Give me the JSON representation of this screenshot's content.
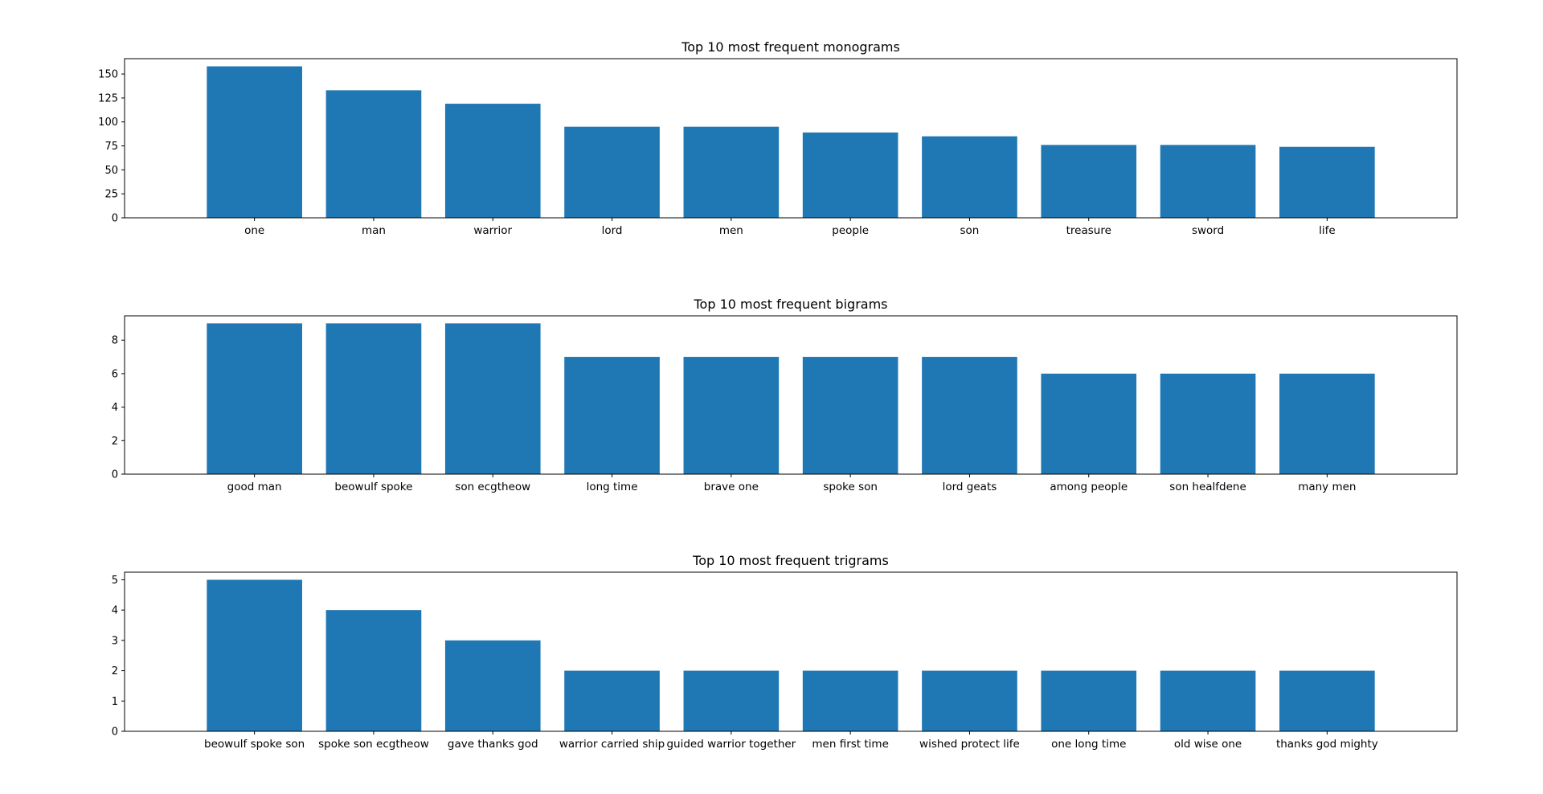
{
  "colors": {
    "bar": "#1f77b4",
    "axes": "#000000",
    "background": "#ffffff"
  },
  "chart_data": [
    {
      "type": "bar",
      "title": "Top 10 most frequent monograms",
      "xlabel": "",
      "ylabel": "",
      "categories": [
        "one",
        "man",
        "warrior",
        "lord",
        "men",
        "people",
        "son",
        "treasure",
        "sword",
        "life"
      ],
      "values": [
        158,
        133,
        119,
        95,
        95,
        89,
        85,
        76,
        76,
        74
      ],
      "ylim": [
        0,
        166
      ],
      "yticks": [
        0,
        25,
        50,
        75,
        100,
        125,
        150
      ],
      "grid": false
    },
    {
      "type": "bar",
      "title": "Top 10 most frequent bigrams",
      "xlabel": "",
      "ylabel": "",
      "categories": [
        "good man",
        "beowulf spoke",
        "son ecgtheow",
        "long time",
        "brave one",
        "spoke son",
        "lord geats",
        "among people",
        "son healfdene",
        "many men"
      ],
      "values": [
        9,
        9,
        9,
        7,
        7,
        7,
        7,
        6,
        6,
        6
      ],
      "ylim": [
        0,
        9.45
      ],
      "yticks": [
        0,
        2,
        4,
        6,
        8
      ],
      "grid": false
    },
    {
      "type": "bar",
      "title": "Top 10 most frequent trigrams",
      "xlabel": "",
      "ylabel": "",
      "categories": [
        "beowulf spoke son",
        "spoke son ecgtheow",
        "gave thanks god",
        "warrior carried ship",
        "guided warrior together",
        "men first time",
        "wished protect life",
        "one long time",
        "old wise one",
        "thanks god mighty"
      ],
      "values": [
        5,
        4,
        3,
        2,
        2,
        2,
        2,
        2,
        2,
        2
      ],
      "ylim": [
        0,
        5.25
      ],
      "yticks": [
        0,
        1,
        2,
        3,
        4,
        5
      ],
      "grid": false
    }
  ]
}
